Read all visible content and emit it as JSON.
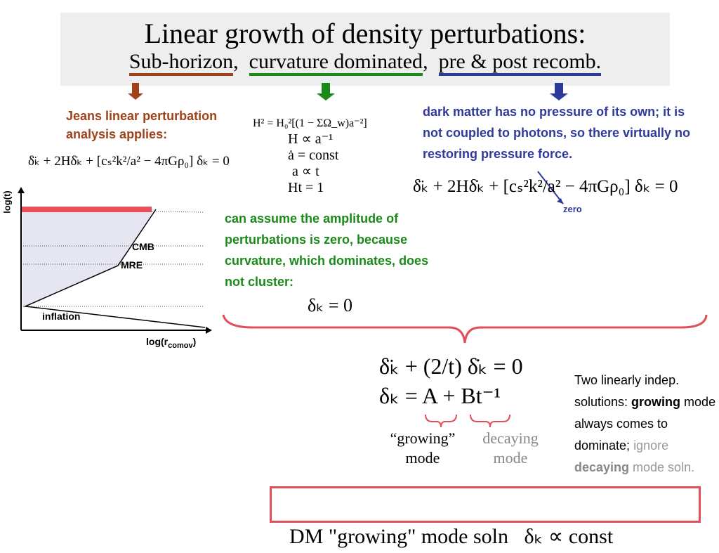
{
  "header": {
    "title": "Linear growth of density perturbations:",
    "columns": [
      {
        "heading": "Sub-horizon",
        "punct": ","
      },
      {
        "heading": "curvature dominated",
        "punct": ","
      },
      {
        "heading": "pre & post recomb."
      }
    ]
  },
  "left": {
    "note": "Jeans linear perturbation analysis applies:",
    "equation": "δ̈ₖ + 2Hδ̇ₖ + [cₛ²k²/a² − 4πGρ₀] δₖ = 0",
    "diagram": {
      "y_label": "log(t)",
      "x_label": {
        "text": "log(r",
        "sub": "comov",
        "close": ")"
      },
      "labels": [
        "CMB",
        "MRE",
        "inflation"
      ]
    }
  },
  "middle": {
    "equations": [
      "H² = H₀²[(1 − ΣΩ_w)a⁻²]",
      "H ∝ a⁻¹",
      "ȧ = const",
      "a ∝ t",
      "Ht = 1"
    ],
    "note": "can assume the amplitude of perturbations is zero, because curvature, which dominates, does not cluster:",
    "result": "δₖ = 0"
  },
  "right": {
    "note": "dark matter has no pressure of its own; it is not coupled to photons, so there virtually no restoring pressure force.",
    "equation": "δ̈ₖ + 2Hδ̇ₖ + [cₛ²k²/a² − 4πGρ₀] δₖ = 0",
    "annotation": "zero"
  },
  "bottom": {
    "equations": [
      "δ̈ₖ + (2/t) δ̇ₖ = 0",
      "δₖ = A + Bt⁻¹"
    ],
    "growing_label": "“growing” mode",
    "decaying_label": "decaying mode",
    "side_text": [
      "Two linearly indep. solutions: ",
      "growing",
      " mode always comes to dominate; ",
      "ignore ",
      "decaying",
      " mode soln."
    ],
    "conclusion": {
      "text": "DM \"growing\" mode soln",
      "equation": "δₖ ∝ const"
    }
  }
}
